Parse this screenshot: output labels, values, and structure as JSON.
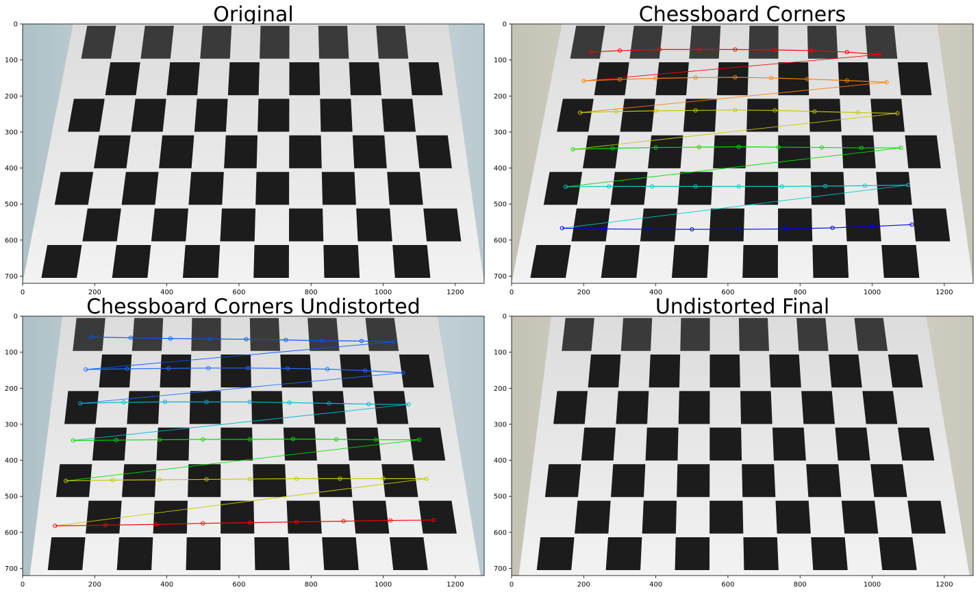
{
  "figure": {
    "panels": [
      {
        "title": "Original",
        "overlay": "none",
        "photo_tint": "cool"
      },
      {
        "title": "Chessboard Corners",
        "overlay": "corners-distorted",
        "photo_tint": "warm"
      },
      {
        "title": "Chessboard Corners Undistorted",
        "overlay": "corners-undistorted",
        "photo_tint": "cool"
      },
      {
        "title": "Undistorted Final",
        "overlay": "none",
        "photo_tint": "warm"
      }
    ]
  },
  "chart_data": [
    {
      "type": "image",
      "title": "Original",
      "xlim": [
        0,
        1280
      ],
      "ylim": [
        720,
        0
      ],
      "xticks": [
        0,
        200,
        400,
        600,
        800,
        1000,
        1200
      ],
      "yticks": [
        0,
        100,
        200,
        300,
        400,
        500,
        600,
        700
      ],
      "grid": false
    },
    {
      "type": "image",
      "title": "Chessboard Corners",
      "xlim": [
        0,
        1280
      ],
      "ylim": [
        720,
        0
      ],
      "xticks": [
        0,
        200,
        400,
        600,
        800,
        1000,
        1200
      ],
      "yticks": [
        0,
        100,
        200,
        300,
        400,
        500,
        600,
        700
      ],
      "grid": false,
      "corner_rows": [
        {
          "color": "#ff0000",
          "points": [
            [
              220,
              78
            ],
            [
              300,
              74
            ],
            [
              410,
              71
            ],
            [
              520,
              71
            ],
            [
              620,
              71
            ],
            [
              730,
              72
            ],
            [
              830,
              74
            ],
            [
              930,
              78
            ],
            [
              1020,
              85
            ]
          ]
        },
        {
          "color": "#ff8000",
          "points": [
            [
              200,
              158
            ],
            [
              300,
              154
            ],
            [
              400,
              151
            ],
            [
              510,
              149
            ],
            [
              620,
              148
            ],
            [
              720,
              150
            ],
            [
              820,
              153
            ],
            [
              930,
              157
            ],
            [
              1040,
              162
            ]
          ]
        },
        {
          "color": "#c8c800",
          "points": [
            [
              190,
              246
            ],
            [
              290,
              243
            ],
            [
              400,
              241
            ],
            [
              510,
              240
            ],
            [
              620,
              239
            ],
            [
              730,
              240
            ],
            [
              840,
              243
            ],
            [
              960,
              246
            ],
            [
              1070,
              248
            ]
          ]
        },
        {
          "color": "#00e000",
          "points": [
            [
              170,
              348
            ],
            [
              280,
              345
            ],
            [
              400,
              343
            ],
            [
              520,
              342
            ],
            [
              630,
              341
            ],
            [
              740,
              342
            ],
            [
              860,
              343
            ],
            [
              970,
              344
            ],
            [
              1080,
              344
            ]
          ]
        },
        {
          "color": "#00c8c8",
          "points": [
            [
              150,
              452
            ],
            [
              270,
              451
            ],
            [
              390,
              451
            ],
            [
              510,
              451
            ],
            [
              630,
              451
            ],
            [
              750,
              451
            ],
            [
              870,
              450
            ],
            [
              980,
              449
            ],
            [
              1100,
              447
            ]
          ]
        },
        {
          "color": "#0000ff",
          "points": [
            [
              140,
              567
            ],
            [
              260,
              569
            ],
            [
              380,
              570
            ],
            [
              500,
              570
            ],
            [
              630,
              570
            ],
            [
              760,
              569
            ],
            [
              890,
              566
            ],
            [
              1000,
              562
            ],
            [
              1110,
              557
            ]
          ]
        }
      ]
    },
    {
      "type": "image",
      "title": "Chessboard Corners Undistorted",
      "xlim": [
        0,
        1280
      ],
      "ylim": [
        720,
        0
      ],
      "xticks": [
        0,
        200,
        400,
        600,
        800,
        1000,
        1200
      ],
      "yticks": [
        0,
        100,
        200,
        300,
        400,
        500,
        600,
        700
      ],
      "grid": false,
      "corner_rows": [
        {
          "color": "#0055ff",
          "points": [
            [
              190,
              58
            ],
            [
              300,
              60
            ],
            [
              410,
              62
            ],
            [
              520,
              63
            ],
            [
              620,
              64
            ],
            [
              730,
              66
            ],
            [
              830,
              68
            ],
            [
              940,
              69
            ],
            [
              1030,
              71
            ]
          ]
        },
        {
          "color": "#1e6eff",
          "points": [
            [
              175,
              148
            ],
            [
              290,
              146
            ],
            [
              405,
              145
            ],
            [
              515,
              144
            ],
            [
              625,
              144
            ],
            [
              735,
              145
            ],
            [
              845,
              147
            ],
            [
              950,
              151
            ],
            [
              1055,
              157
            ]
          ]
        },
        {
          "color": "#00b4d2",
          "points": [
            [
              160,
              242
            ],
            [
              280,
              239
            ],
            [
              395,
              238
            ],
            [
              510,
              238
            ],
            [
              630,
              238
            ],
            [
              740,
              240
            ],
            [
              850,
              242
            ],
            [
              960,
              244
            ],
            [
              1070,
              245
            ]
          ]
        },
        {
          "color": "#00e000",
          "points": [
            [
              140,
              345
            ],
            [
              260,
              344
            ],
            [
              380,
              343
            ],
            [
              500,
              342
            ],
            [
              630,
              342
            ],
            [
              750,
              341
            ],
            [
              870,
              342
            ],
            [
              980,
              343
            ],
            [
              1100,
              343
            ]
          ]
        },
        {
          "color": "#c8c800",
          "points": [
            [
              120,
              457
            ],
            [
              250,
              455
            ],
            [
              380,
              454
            ],
            [
              510,
              453
            ],
            [
              630,
              452
            ],
            [
              760,
              451
            ],
            [
              880,
              451
            ],
            [
              1000,
              451
            ],
            [
              1120,
              451
            ]
          ]
        },
        {
          "color": "#ff0000",
          "points": [
            [
              90,
              582
            ],
            [
              230,
              580
            ],
            [
              370,
              578
            ],
            [
              500,
              575
            ],
            [
              630,
              573
            ],
            [
              760,
              571
            ],
            [
              890,
              569
            ],
            [
              1020,
              567
            ],
            [
              1140,
              566
            ]
          ]
        }
      ]
    },
    {
      "type": "image",
      "title": "Undistorted Final",
      "xlim": [
        0,
        1280
      ],
      "ylim": [
        720,
        0
      ],
      "xticks": [
        0,
        200,
        400,
        600,
        800,
        1000,
        1200
      ],
      "yticks": [
        0,
        100,
        200,
        300,
        400,
        500,
        600,
        700
      ],
      "grid": false
    }
  ]
}
